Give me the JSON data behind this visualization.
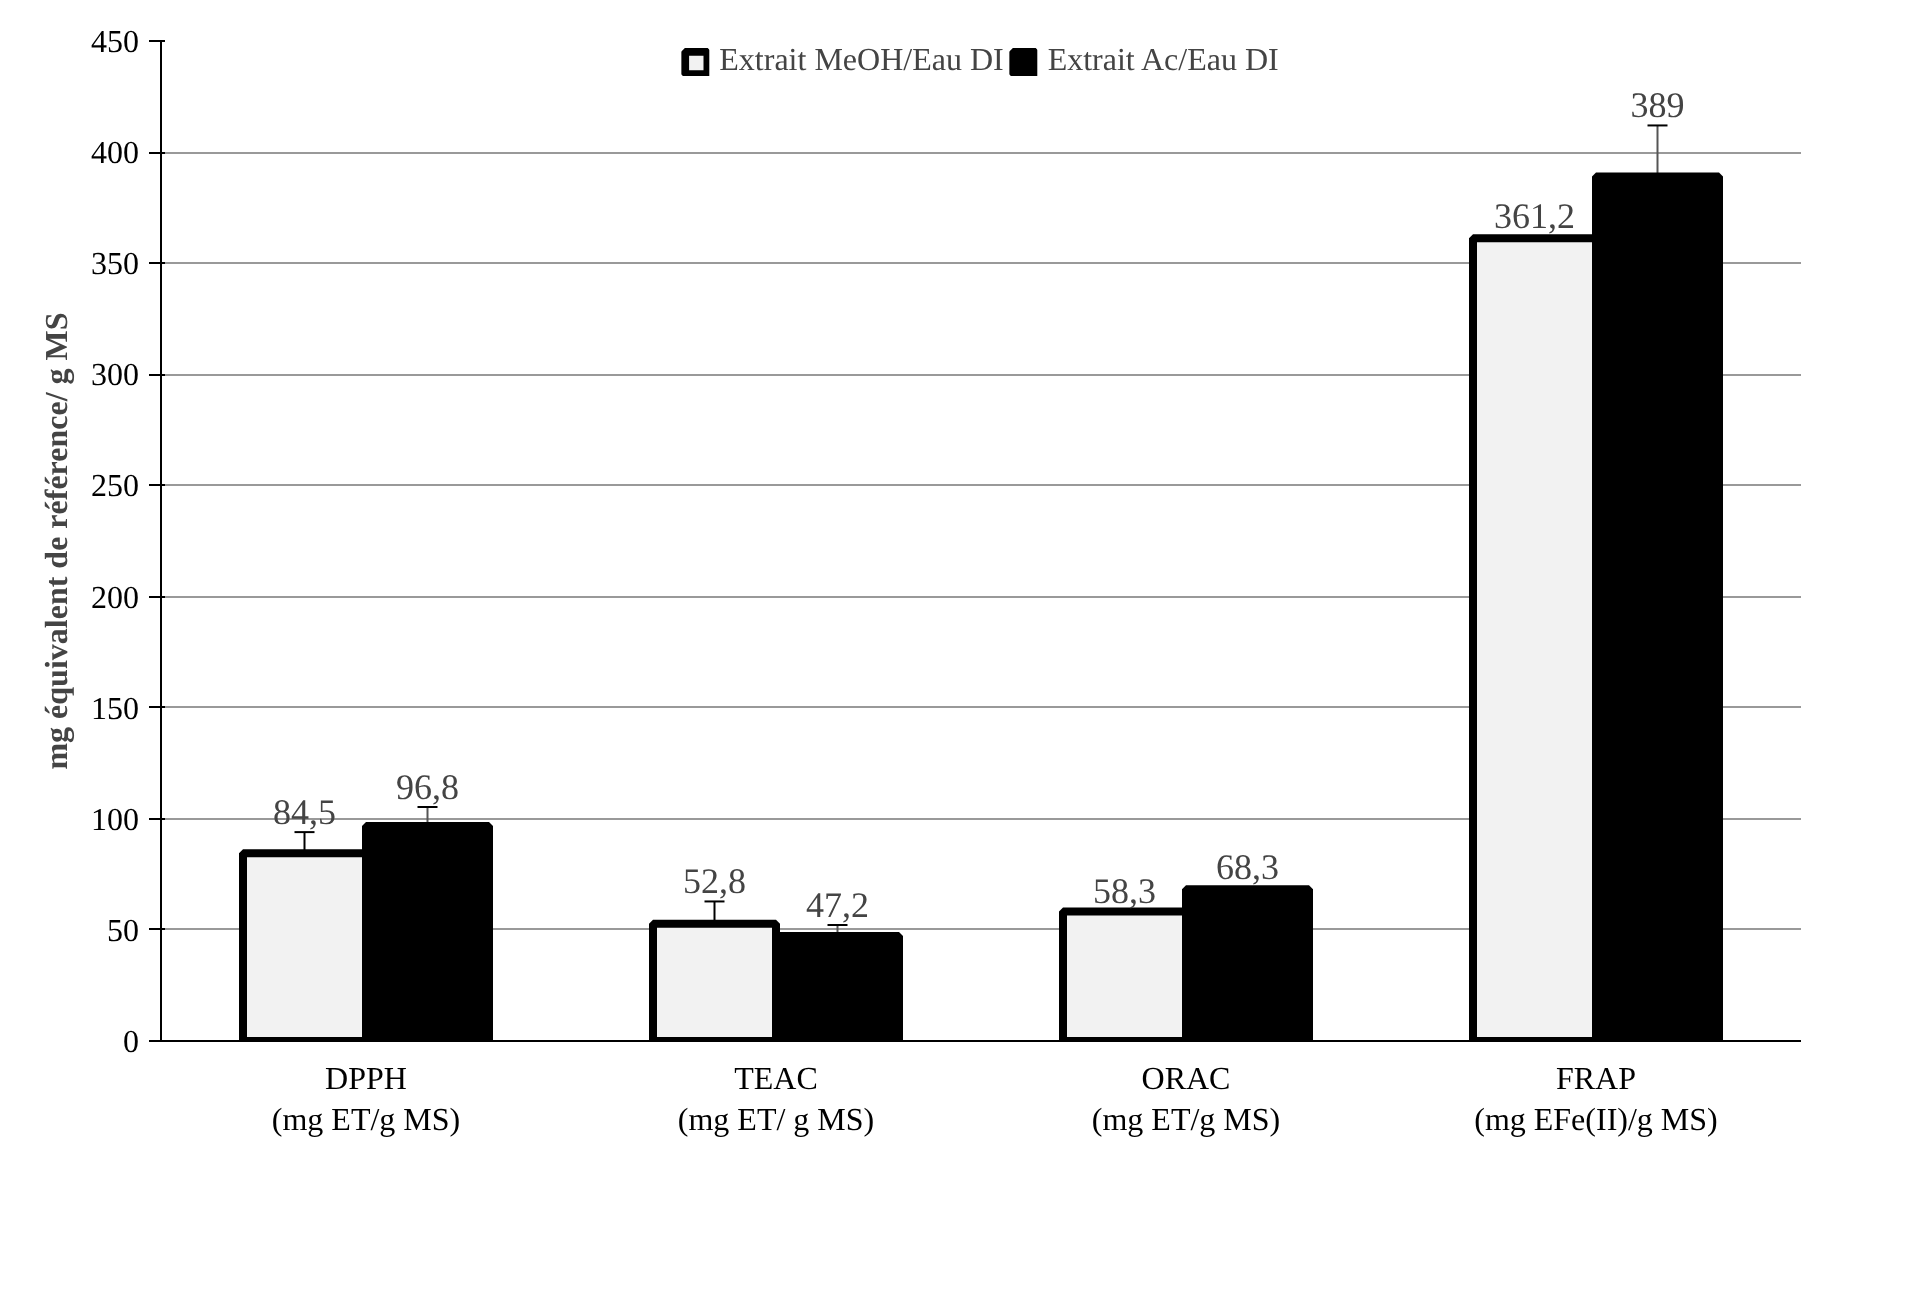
{
  "chart_data": {
    "type": "bar",
    "ylabel": "mg équivalent de référence/ g MS",
    "categories": [
      "DPPH\n(mg ET/g MS)",
      "TEAC\n(mg ET/ g MS)",
      "ORAC\n(mg ET/g MS)",
      "FRAP\n(mg EFe(II)/g MS)"
    ],
    "series": [
      {
        "name": "Extrait MeOH/Eau DI",
        "color": "#f2f2f2",
        "values": [
          84.5,
          52.8,
          58.3,
          361.2
        ],
        "errors": [
          9.5,
          10,
          null,
          1
        ],
        "value_labels": [
          "84,5",
          "52,8",
          "58,3",
          "361,2"
        ]
      },
      {
        "name": "Extrait Ac/Eau DI",
        "color": "#000000",
        "values": [
          96.8,
          47.2,
          68.3,
          389
        ],
        "errors": [
          8.5,
          5,
          1,
          23
        ],
        "value_labels": [
          "96,8",
          "47,2",
          "68,3",
          "389"
        ]
      }
    ],
    "ylim": [
      0,
      450
    ],
    "yticks": [
      0,
      50,
      100,
      150,
      200,
      250,
      300,
      350,
      400,
      450
    ],
    "grid": "y",
    "legend": "top"
  }
}
